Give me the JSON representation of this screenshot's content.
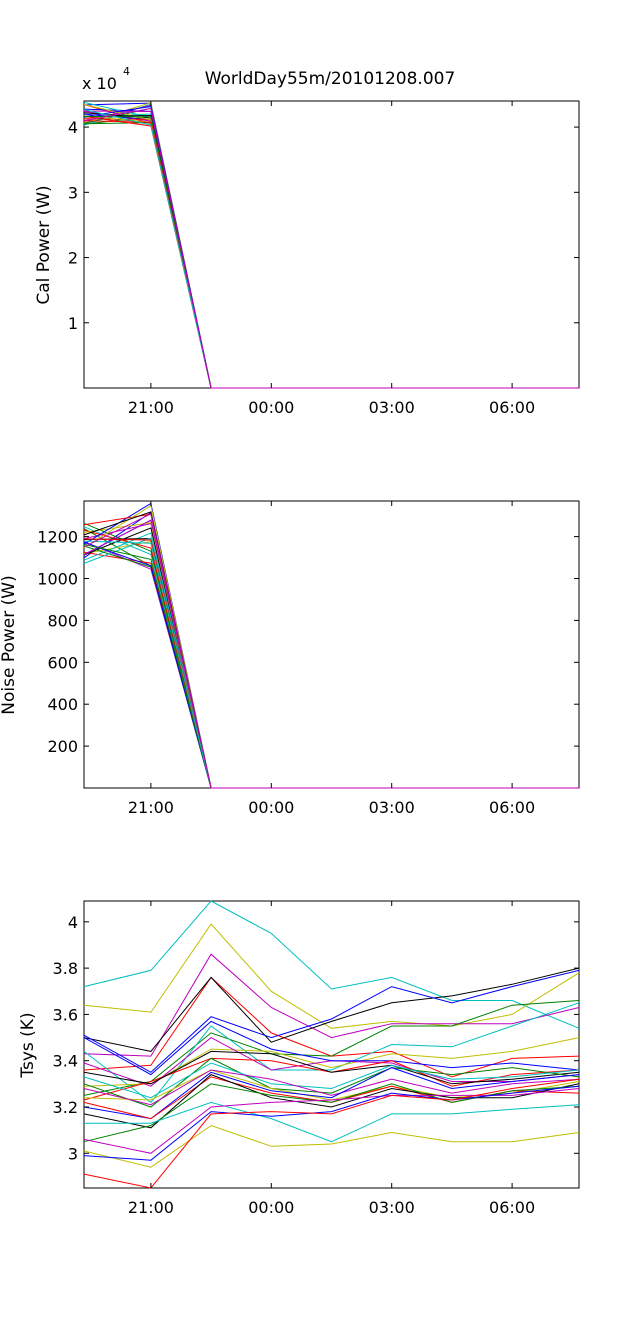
{
  "figure": {
    "title": "WorldDay55m/20101208.007",
    "exponent_base": "x 10",
    "exponent_power": "4"
  },
  "x_tick_labels": [
    "21:00",
    "00:00",
    "03:00",
    "06:00"
  ],
  "series_colors": [
    "#0000ff",
    "#008000",
    "#ff0000",
    "#00bfbf",
    "#bf00bf",
    "#bfbf00",
    "#000000"
  ],
  "chart_data": [
    {
      "type": "line",
      "title": "WorldDay55m/20101208.007",
      "xlabel": "",
      "ylabel": "Cal Power (W)",
      "y_multiplier": "x 10^4",
      "x": [
        "19:20",
        "21:00",
        "22:30",
        "00:00",
        "01:30",
        "03:00",
        "04:30",
        "06:00",
        "07:40"
      ],
      "ylim": [
        0,
        44000
      ],
      "yticks": [
        10000,
        20000,
        30000,
        40000
      ],
      "ytick_labels": [
        "1",
        "2",
        "3",
        "4"
      ],
      "series_count": 26,
      "value_range_start": [
        40200,
        43800
      ],
      "value_range_second": [
        40000,
        44000
      ],
      "values_after_drop": 0
    },
    {
      "type": "line",
      "xlabel": "",
      "ylabel": "Noise Power (W)",
      "x": [
        "19:20",
        "21:00",
        "22:30",
        "00:00",
        "01:30",
        "03:00",
        "04:30",
        "06:00",
        "07:40"
      ],
      "ylim": [
        0,
        1370
      ],
      "yticks": [
        200,
        400,
        600,
        800,
        1000,
        1200
      ],
      "ytick_labels": [
        "200",
        "400",
        "600",
        "800",
        "1000",
        "1200"
      ],
      "series_count": 26,
      "value_range_start": [
        1070,
        1300
      ],
      "value_range_second": [
        1040,
        1370
      ],
      "values_after_drop": 0
    },
    {
      "type": "line",
      "xlabel": "",
      "ylabel": "Tsys (K)",
      "x": [
        "19:20",
        "21:00",
        "22:30",
        "00:00",
        "01:30",
        "03:00",
        "04:30",
        "06:00",
        "07:40"
      ],
      "ylim": [
        2.85,
        4.09
      ],
      "yticks": [
        3.0,
        3.2,
        3.4,
        3.6,
        3.8,
        4.0
      ],
      "ytick_labels": [
        "3",
        "3.2",
        "3.4",
        "3.6",
        "3.8",
        "4"
      ],
      "series": [
        {
          "color": "#00bfbf",
          "values": [
            3.72,
            3.79,
            4.09,
            3.95,
            3.71,
            3.76,
            3.66,
            3.66,
            3.54
          ]
        },
        {
          "color": "#bfbf00",
          "values": [
            3.64,
            3.61,
            3.99,
            3.7,
            3.54,
            3.57,
            3.55,
            3.6,
            3.78
          ]
        },
        {
          "color": "#bf00bf",
          "values": [
            3.43,
            3.42,
            3.86,
            3.63,
            3.5,
            3.56,
            3.56,
            3.56,
            3.63
          ]
        },
        {
          "color": "#ff0000",
          "values": [
            3.36,
            3.38,
            3.76,
            3.52,
            3.42,
            3.44,
            3.33,
            3.41,
            3.42
          ]
        },
        {
          "color": "#000000",
          "values": [
            3.5,
            3.44,
            3.76,
            3.48,
            3.57,
            3.65,
            3.68,
            3.73,
            3.8
          ]
        },
        {
          "color": "#0000ff",
          "values": [
            3.51,
            3.35,
            3.59,
            3.5,
            3.58,
            3.72,
            3.65,
            3.72,
            3.79
          ]
        },
        {
          "color": "#008000",
          "values": [
            3.25,
            3.31,
            3.52,
            3.43,
            3.42,
            3.55,
            3.55,
            3.64,
            3.66
          ]
        },
        {
          "color": "#00bfbf",
          "values": [
            3.44,
            3.22,
            3.55,
            3.36,
            3.36,
            3.47,
            3.46,
            3.55,
            3.65
          ]
        },
        {
          "color": "#bfbf00",
          "values": [
            3.29,
            3.3,
            3.45,
            3.44,
            3.37,
            3.43,
            3.41,
            3.44,
            3.5
          ]
        },
        {
          "color": "#bf00bf",
          "values": [
            3.39,
            3.29,
            3.5,
            3.36,
            3.4,
            3.39,
            3.31,
            3.31,
            3.34
          ]
        },
        {
          "color": "#0000ff",
          "values": [
            3.5,
            3.34,
            3.57,
            3.45,
            3.4,
            3.4,
            3.37,
            3.39,
            3.36
          ]
        },
        {
          "color": "#ff0000",
          "values": [
            3.23,
            3.31,
            3.41,
            3.4,
            3.35,
            3.4,
            3.29,
            3.34,
            3.36
          ]
        },
        {
          "color": "#000000",
          "values": [
            3.35,
            3.3,
            3.44,
            3.43,
            3.35,
            3.38,
            3.3,
            3.32,
            3.35
          ]
        },
        {
          "color": "#008000",
          "values": [
            3.3,
            3.2,
            3.41,
            3.28,
            3.26,
            3.37,
            3.34,
            3.37,
            3.33
          ]
        },
        {
          "color": "#00bfbf",
          "values": [
            3.33,
            3.24,
            3.39,
            3.3,
            3.28,
            3.38,
            3.32,
            3.33,
            3.36
          ]
        },
        {
          "color": "#bfbf00",
          "values": [
            3.24,
            3.23,
            3.36,
            3.28,
            3.23,
            3.29,
            3.24,
            3.26,
            3.31
          ]
        },
        {
          "color": "#bf00bf",
          "values": [
            3.28,
            3.21,
            3.36,
            3.32,
            3.25,
            3.32,
            3.26,
            3.3,
            3.32
          ]
        },
        {
          "color": "#0000ff",
          "values": [
            3.2,
            3.15,
            3.35,
            3.27,
            3.24,
            3.37,
            3.28,
            3.31,
            3.34
          ]
        },
        {
          "color": "#ff0000",
          "values": [
            3.22,
            3.15,
            3.33,
            3.26,
            3.22,
            3.29,
            3.22,
            3.27,
            3.26
          ]
        },
        {
          "color": "#000000",
          "values": [
            3.17,
            3.11,
            3.34,
            3.24,
            3.2,
            3.28,
            3.24,
            3.24,
            3.3
          ]
        },
        {
          "color": "#008000",
          "values": [
            3.05,
            3.12,
            3.3,
            3.25,
            3.22,
            3.3,
            3.22,
            3.27,
            3.29
          ]
        },
        {
          "color": "#00bfbf",
          "values": [
            3.13,
            3.13,
            3.22,
            3.15,
            3.05,
            3.17,
            3.17,
            3.19,
            3.21
          ]
        },
        {
          "color": "#bfbf00",
          "values": [
            3.01,
            2.94,
            3.12,
            3.03,
            3.04,
            3.09,
            3.05,
            3.05,
            3.09
          ]
        },
        {
          "color": "#bf00bf",
          "values": [
            3.06,
            3.0,
            3.2,
            3.22,
            3.23,
            3.25,
            3.25,
            3.25,
            3.28
          ]
        },
        {
          "color": "#0000ff",
          "values": [
            2.99,
            2.97,
            3.18,
            3.16,
            3.18,
            3.26,
            3.23,
            3.26,
            3.29
          ]
        },
        {
          "color": "#ff0000",
          "values": [
            2.91,
            2.85,
            3.17,
            3.18,
            3.17,
            3.25,
            3.23,
            3.28,
            3.32
          ]
        }
      ]
    }
  ]
}
